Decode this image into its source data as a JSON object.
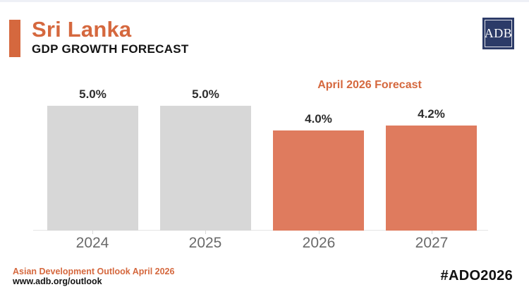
{
  "header": {
    "country": "Sri Lanka",
    "title": "GDP GROWTH FORECAST",
    "logo_text": "ADB"
  },
  "colors": {
    "accent_orange": "#d5683e",
    "bar_orange": "#df7b5e",
    "bar_gray": "#d7d7d7",
    "logo_navy": "#2c3b68",
    "value_label": "#2e2e2e",
    "year_label": "#6a6a6a"
  },
  "chart_data": {
    "type": "bar",
    "title": "GDP GROWTH FORECAST",
    "categories": [
      "2024",
      "2025",
      "2026",
      "2027"
    ],
    "values": [
      5.0,
      5.0,
      4.0,
      4.2
    ],
    "data_labels": [
      "5.0%",
      "5.0%",
      "4.0%",
      "4.2%"
    ],
    "bar_colors": [
      "#d7d7d7",
      "#d7d7d7",
      "#df7b5e",
      "#df7b5e"
    ],
    "annotation": "April 2026 Forecast",
    "annotation_applies_to": [
      "2026",
      "2027"
    ],
    "xlabel": "",
    "ylabel": "",
    "ylim": [
      0,
      5.5
    ],
    "grid": false,
    "legend": false,
    "unit": "percent"
  },
  "footer": {
    "source": "Asian Development Outlook April 2026",
    "url": "www.adb.org/outlook",
    "hashtag": "#ADO2026"
  }
}
